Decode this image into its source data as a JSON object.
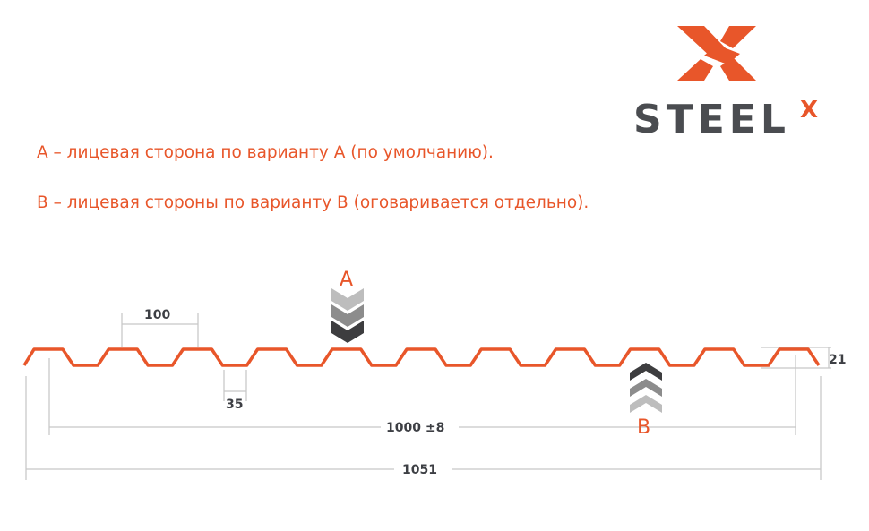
{
  "logo": {
    "text": "STEEL",
    "superscript": "X",
    "brand_color": "#e8562a",
    "text_color": "#4a4c50"
  },
  "notes": [
    "А – лицевая сторона по варианту А (по умолчанию).",
    "В – лицевая стороны по варианту В (оговаривается отдельно)."
  ],
  "diagram": {
    "profile_color": "#e8562a",
    "dimension_color": "#c8c8c8",
    "side_a_label": "A",
    "side_b_label": "B",
    "dimensions": {
      "pitch": "100",
      "bottom_width": "35",
      "height": "21",
      "useful_width": "1000 ±8",
      "total_width": "1051"
    }
  }
}
